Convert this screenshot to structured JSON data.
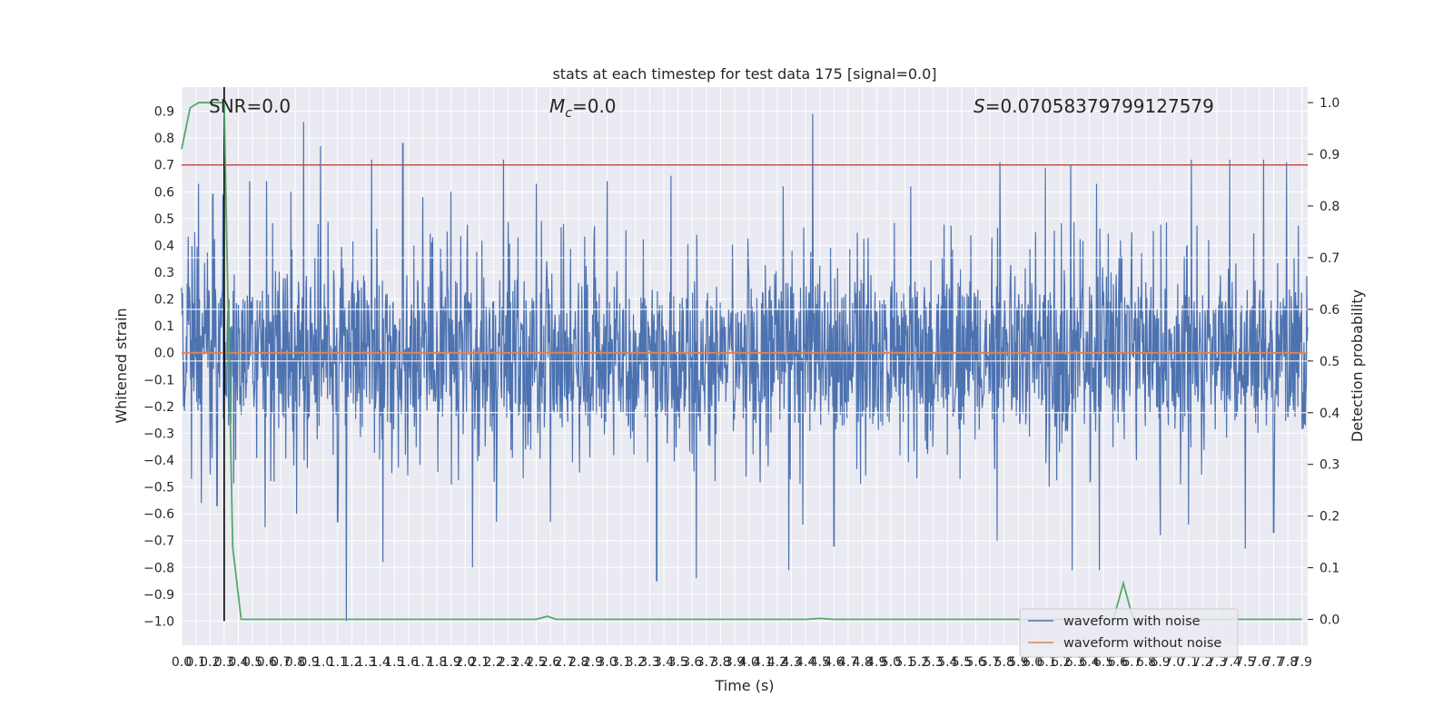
{
  "chart_data": {
    "type": "line",
    "title": "stats at each timestep for test data 175 [signal=0.0]",
    "xlabel": "Time (s)",
    "ylabel": "Whitened strain",
    "y2label": "Detection probability",
    "xlim": [
      0.0,
      7.94
    ],
    "ylim": [
      -1.09,
      0.99
    ],
    "y2lim": [
      -0.05,
      1.03
    ],
    "grid": true,
    "legend_position": "lower-right",
    "annotations": {
      "snr": "SNR=0.0",
      "mc_prefix": "M",
      "mc_sub": "c",
      "mc_value": "=0.0",
      "s_prefix": "S",
      "s_value": "=0.07058379799127579"
    },
    "yticks": [
      0.9,
      0.8,
      0.7,
      0.6,
      0.5,
      0.4,
      0.3,
      0.2,
      0.1,
      0.0,
      -0.1,
      -0.2,
      -0.3,
      -0.4,
      -0.5,
      -0.6,
      -0.7,
      -0.8,
      -0.9,
      -1.0
    ],
    "ytick_labels": [
      "0.9",
      "0.8",
      "0.7",
      "0.6",
      "0.5",
      "0.4",
      "0.3",
      "0.2",
      "0.1",
      "0.0",
      "−0.1",
      "−0.2",
      "−0.3",
      "−0.4",
      "−0.5",
      "−0.6",
      "−0.7",
      "−0.8",
      "−0.9",
      "−1.0"
    ],
    "y2ticks": [
      1.0,
      0.9,
      0.8,
      0.7,
      0.6,
      0.5,
      0.4,
      0.3,
      0.2,
      0.1,
      0.0
    ],
    "y2tick_labels": [
      "1.0",
      "0.9",
      "0.8",
      "0.7",
      "0.6",
      "0.5",
      "0.4",
      "0.3",
      "0.2",
      "0.1",
      "0.0"
    ],
    "xticks": [
      0.0,
      0.1,
      0.2,
      0.3,
      0.4,
      0.5,
      0.6,
      0.7,
      0.8,
      0.9,
      1.0,
      1.1,
      1.2,
      1.3,
      1.4,
      1.5,
      1.6,
      1.7,
      1.8,
      1.9,
      2.0,
      2.1,
      2.2,
      2.3,
      2.4,
      2.5,
      2.6,
      2.7,
      2.8,
      2.9,
      3.0,
      3.1,
      3.2,
      3.3,
      3.4,
      3.5,
      3.6,
      3.7,
      3.8,
      3.9,
      4.0,
      4.1,
      4.2,
      4.3,
      4.4,
      4.5,
      4.6,
      4.7,
      4.8,
      4.9,
      5.0,
      5.1,
      5.2,
      5.3,
      5.4,
      5.5,
      5.6,
      5.7,
      5.8,
      5.9,
      6.0,
      6.1,
      6.2,
      6.3,
      6.4,
      6.5,
      6.6,
      6.7,
      6.8,
      6.9,
      7.0,
      7.1,
      7.2,
      7.3,
      7.4,
      7.5,
      7.6,
      7.7,
      7.8,
      7.9
    ],
    "xtick_labels": [
      "0.0",
      "0.1",
      "0.2",
      "0.3",
      "0.4",
      "0.5",
      "0.6",
      "0.7",
      "0.8",
      "0.9",
      "1.0",
      "1.1",
      "1.2",
      "1.3",
      "1.4",
      "1.5",
      "1.6",
      "1.7",
      "1.8",
      "1.9",
      "2.0",
      "2.1",
      "2.2",
      "2.3",
      "2.4",
      "2.5",
      "2.6",
      "2.7",
      "2.8",
      "2.9",
      "3.0",
      "3.1",
      "3.2",
      "3.3",
      "3.4",
      "3.5",
      "3.6",
      "3.7",
      "3.8",
      "3.9",
      "4.0",
      "4.1",
      "4.2",
      "4.3",
      "4.4",
      "4.5",
      "4.6",
      "4.7",
      "4.8",
      "4.9",
      "5.0",
      "5.1",
      "5.2",
      "5.3",
      "5.4",
      "5.5",
      "5.6",
      "5.7",
      "5.8",
      "5.9",
      "6.0",
      "6.1",
      "6.2",
      "6.3",
      "6.4",
      "6.5",
      "6.6",
      "6.7",
      "6.8",
      "6.9",
      "7.0",
      "7.1",
      "7.2",
      "7.3",
      "7.4",
      "7.5",
      "7.6",
      "7.7",
      "7.8",
      "7.9"
    ],
    "series": [
      {
        "name": "waveform with noise",
        "axis": "left",
        "color": "#4c72b0",
        "kind": "noise",
        "band_amplitude": 0.32,
        "peaks": [
          [
            0.07,
            0.74
          ],
          [
            0.12,
            0.63
          ],
          [
            0.22,
            0.59
          ],
          [
            0.29,
            0.59
          ],
          [
            0.48,
            0.64
          ],
          [
            0.6,
            0.64
          ],
          [
            0.77,
            0.6
          ],
          [
            0.86,
            0.86
          ],
          [
            0.98,
            0.77
          ],
          [
            1.34,
            0.72
          ],
          [
            1.56,
            0.78
          ],
          [
            1.7,
            0.58
          ],
          [
            1.9,
            0.6
          ],
          [
            2.27,
            0.72
          ],
          [
            2.5,
            0.63
          ],
          [
            3.0,
            0.64
          ],
          [
            3.45,
            0.66
          ],
          [
            4.24,
            0.62
          ],
          [
            4.45,
            0.89
          ],
          [
            5.14,
            0.62
          ],
          [
            5.77,
            0.71
          ],
          [
            6.09,
            0.69
          ],
          [
            6.27,
            0.7
          ],
          [
            6.45,
            0.63
          ],
          [
            7.12,
            0.72
          ],
          [
            7.39,
            0.72
          ],
          [
            7.63,
            0.72
          ],
          [
            7.79,
            0.71
          ]
        ],
        "troughs": [
          [
            0.07,
            -0.47
          ],
          [
            0.14,
            -0.56
          ],
          [
            0.25,
            -0.57
          ],
          [
            0.59,
            -0.65
          ],
          [
            0.81,
            -0.6
          ],
          [
            1.1,
            -0.63
          ],
          [
            1.16,
            -1.0
          ],
          [
            1.42,
            -0.78
          ],
          [
            2.05,
            -0.8
          ],
          [
            2.22,
            -0.63
          ],
          [
            2.6,
            -0.63
          ],
          [
            3.35,
            -0.85
          ],
          [
            3.63,
            -0.84
          ],
          [
            4.28,
            -0.81
          ],
          [
            4.38,
            -0.64
          ],
          [
            4.6,
            -0.72
          ],
          [
            5.75,
            -0.7
          ],
          [
            6.28,
            -0.81
          ],
          [
            6.47,
            -0.81
          ],
          [
            6.9,
            -0.68
          ],
          [
            7.1,
            -0.64
          ],
          [
            7.5,
            -0.73
          ],
          [
            7.7,
            -0.67
          ]
        ]
      },
      {
        "name": "waveform without noise",
        "axis": "left",
        "color": "#dd8452",
        "x": [
          0.0,
          7.94
        ],
        "y": [
          0.0,
          0.0
        ]
      },
      {
        "name": "detection probability",
        "axis": "right",
        "color": "#55a868",
        "x": [
          0.0,
          0.06,
          0.12,
          0.18,
          0.24,
          0.3,
          0.36,
          0.42,
          2.5,
          2.58,
          2.64,
          2.7,
          4.4,
          4.5,
          4.6,
          6.57,
          6.64,
          6.71,
          6.78,
          7.9
        ],
        "y": [
          0.91,
          0.99,
          1.0,
          1.0,
          1.0,
          1.0,
          0.14,
          0.0,
          0.0,
          0.006,
          0.0,
          0.0,
          0.0,
          0.002,
          0.0,
          0.0,
          0.07,
          0.0,
          0.0,
          0.0
        ]
      }
    ],
    "hlines": [
      {
        "axis": "left",
        "y": 0.7,
        "color": "#c44e52"
      }
    ],
    "vlines": [
      {
        "axis": "left",
        "x": 0.3,
        "y0": -1.0,
        "y1": 0.99,
        "color": "#000000"
      }
    ]
  }
}
